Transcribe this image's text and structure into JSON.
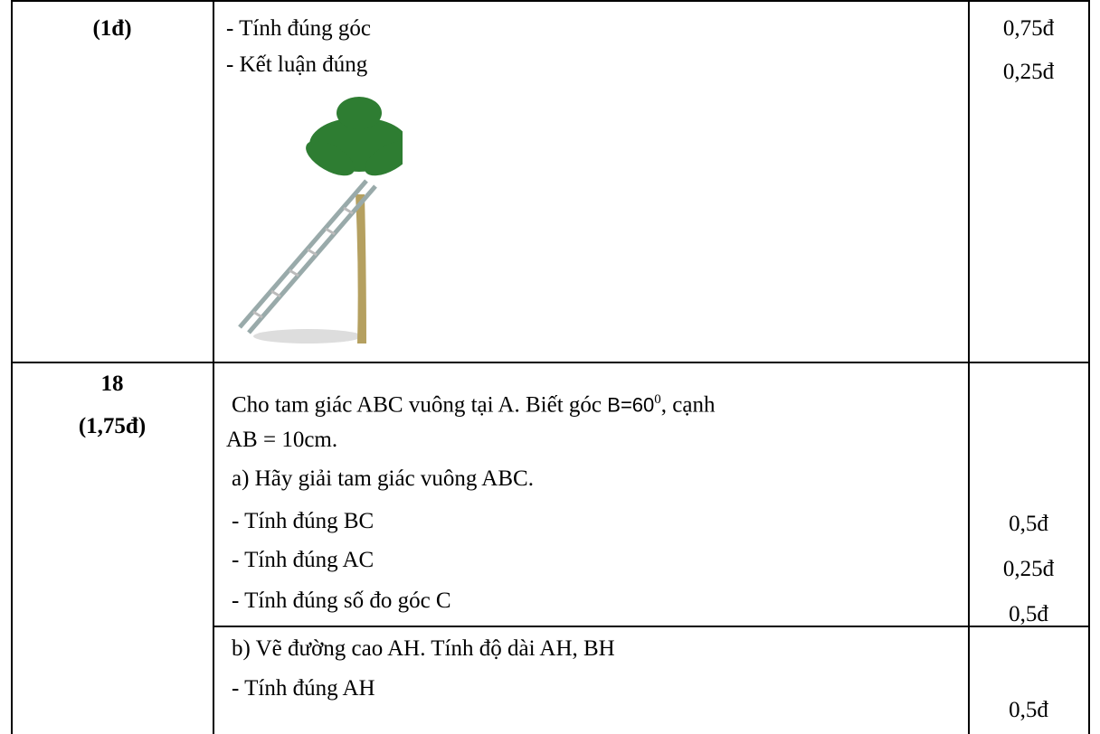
{
  "table": {
    "rows": [
      {
        "question": [
          "(1đ)"
        ],
        "lines": [
          "- Tính đúng góc",
          "- Kết luận đúng"
        ],
        "scores": [
          "0,75đ",
          "0,25đ"
        ]
      },
      {
        "question": [
          "18",
          "(1,75đ)"
        ],
        "intro": {
          "text": "Cho tam giác ABC vuông tại A. Biết góc",
          "angle": "B",
          "equals": "=60",
          "degree": "0",
          "rest": ", cạnh"
        },
        "lines": [
          "AB = 10cm.",
          "a) Hãy giải tam giác vuông ABC.",
          "- Tính đúng BC",
          "- Tính đúng AC",
          "- Tính đúng số đo góc C"
        ],
        "scores": [
          "0,5đ",
          "0,25đ",
          "0,5đ"
        ]
      },
      {
        "lines": [
          "b) Vẽ đường cao AH. Tính độ dài AH, BH",
          "- Tính đúng AH"
        ],
        "scores": [
          "0,5đ"
        ]
      }
    ]
  }
}
